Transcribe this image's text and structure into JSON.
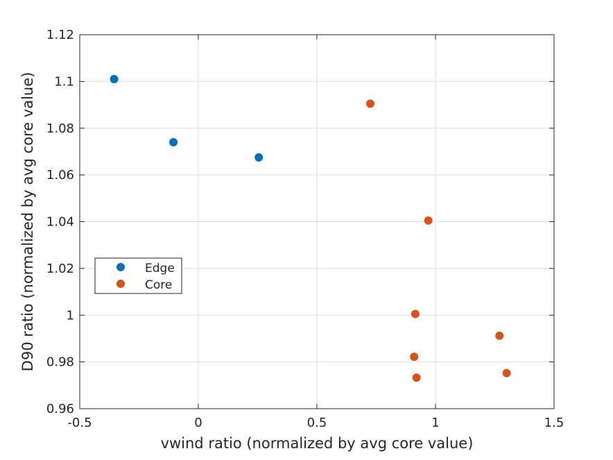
{
  "chart_data": {
    "type": "scatter",
    "xlabel": "vwind ratio (normalized by avg core value)",
    "ylabel": "D90 ratio (normalized by avg core value)",
    "xlim": [
      -0.5,
      1.5
    ],
    "ylim": [
      0.96,
      1.12
    ],
    "xticks": [
      -0.5,
      0,
      0.5,
      1,
      1.5
    ],
    "xtick_labels": [
      "-0.5",
      "0",
      "0.5",
      "1",
      "1.5"
    ],
    "yticks": [
      0.96,
      0.98,
      1.0,
      1.02,
      1.04,
      1.06,
      1.08,
      1.1,
      1.12
    ],
    "ytick_labels": [
      "0.96",
      "0.98",
      "1",
      "1.02",
      "1.04",
      "1.06",
      "1.08",
      "1.1",
      "1.12"
    ],
    "grid": true,
    "legend_position": "middle-left",
    "series": [
      {
        "name": "Edge",
        "color": "#0072BD",
        "points": [
          {
            "x": -0.355,
            "y": 1.101
          },
          {
            "x": -0.105,
            "y": 1.074
          },
          {
            "x": 0.255,
            "y": 1.0675
          }
        ]
      },
      {
        "name": "Core",
        "color": "#D95319",
        "points": [
          {
            "x": 0.725,
            "y": 1.0905
          },
          {
            "x": 0.97,
            "y": 1.0405
          },
          {
            "x": 0.915,
            "y": 1.0005
          },
          {
            "x": 1.27,
            "y": 0.9912
          },
          {
            "x": 0.91,
            "y": 0.9822
          },
          {
            "x": 1.3,
            "y": 0.9752
          },
          {
            "x": 0.92,
            "y": 0.9733
          }
        ]
      }
    ]
  }
}
